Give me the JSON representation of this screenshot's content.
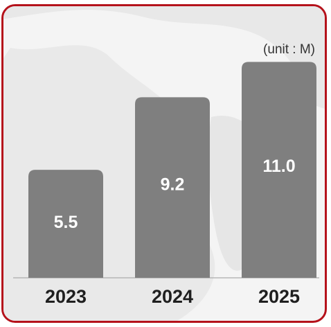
{
  "chart_data": {
    "type": "bar",
    "categories": [
      "2023",
      "2024",
      "2025"
    ],
    "values": [
      5.5,
      9.2,
      11.0
    ],
    "value_labels": [
      "5.5",
      "9.2",
      "11.0"
    ],
    "unit_note": "(unit : M)",
    "ylim": [
      0,
      12
    ],
    "grid": false,
    "legend": "none"
  },
  "colors": {
    "bar": "#7f7f7f",
    "border": "#b5121b",
    "background": "#f4f4f4",
    "map": "#e7e7e7"
  }
}
